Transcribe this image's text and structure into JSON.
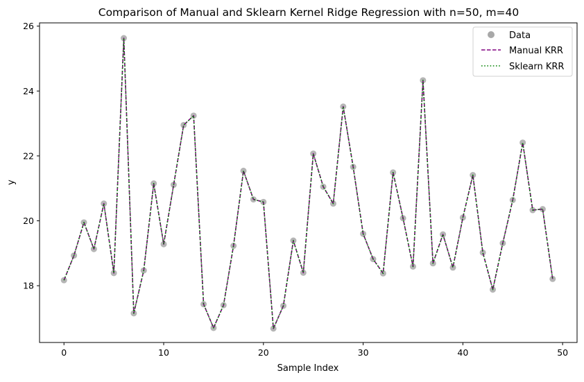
{
  "chart_data": {
    "type": "scatter+line",
    "title": "Comparison of Manual and Sklearn Kernel Ridge Regression with n=50, m=40",
    "xlabel": "Sample Index",
    "ylabel": "y",
    "xlim": [
      -2.45,
      51.45
    ],
    "ylim": [
      16.25,
      26.1
    ],
    "x_ticks": [
      0,
      10,
      20,
      30,
      40,
      50
    ],
    "y_ticks": [
      18,
      20,
      22,
      24,
      26
    ],
    "grid": false,
    "legend": {
      "placement": "top-right",
      "entries": [
        {
          "label": "Data",
          "marker": "circle",
          "color": "#a8a8a8"
        },
        {
          "label": "Manual KRR",
          "style": "dashed",
          "color": "#800080"
        },
        {
          "label": "Sklearn KRR",
          "style": "dotted",
          "color": "#008000"
        }
      ]
    },
    "x": [
      0,
      1,
      2,
      3,
      4,
      5,
      6,
      7,
      8,
      9,
      10,
      11,
      12,
      13,
      14,
      15,
      16,
      17,
      18,
      19,
      20,
      21,
      22,
      23,
      24,
      25,
      26,
      27,
      28,
      29,
      30,
      31,
      32,
      33,
      34,
      35,
      36,
      37,
      38,
      39,
      40,
      41,
      42,
      43,
      44,
      45,
      46,
      47,
      48,
      49
    ],
    "series": [
      {
        "name": "Data",
        "kind": "scatter",
        "color": "#a8a8a8",
        "values": [
          18.17,
          18.93,
          19.95,
          19.13,
          20.53,
          18.39,
          25.63,
          17.15,
          18.47,
          21.15,
          19.28,
          21.11,
          22.95,
          23.24,
          17.43,
          16.7,
          17.4,
          19.23,
          21.54,
          20.66,
          20.58,
          16.68,
          17.38,
          19.39,
          18.4,
          22.07,
          21.05,
          20.53,
          23.52,
          21.66,
          19.6,
          18.82,
          18.38,
          21.49,
          20.08,
          18.59,
          24.33,
          18.69,
          19.58,
          18.56,
          20.1,
          21.41,
          19.02,
          17.88,
          19.31,
          20.64,
          22.41,
          20.33,
          20.36,
          18.21
        ]
      },
      {
        "name": "Manual KRR",
        "kind": "line",
        "style": "dashed",
        "color": "#800080",
        "values": [
          18.17,
          18.93,
          19.95,
          19.13,
          20.53,
          18.39,
          25.63,
          17.15,
          18.47,
          21.15,
          19.28,
          21.11,
          22.95,
          23.24,
          17.43,
          16.7,
          17.4,
          19.23,
          21.54,
          20.66,
          20.58,
          16.68,
          17.38,
          19.39,
          18.4,
          22.07,
          21.05,
          20.53,
          23.52,
          21.66,
          19.6,
          18.82,
          18.38,
          21.49,
          20.08,
          18.59,
          24.33,
          18.69,
          19.58,
          18.56,
          20.1,
          21.41,
          19.02,
          17.88,
          19.31,
          20.64,
          22.41,
          20.33,
          20.36,
          18.21
        ]
      },
      {
        "name": "Sklearn KRR",
        "kind": "line",
        "style": "dotted",
        "color": "#008000",
        "values": [
          18.17,
          18.93,
          19.95,
          19.13,
          20.53,
          18.39,
          25.63,
          17.15,
          18.47,
          21.15,
          19.28,
          21.11,
          22.95,
          23.24,
          17.43,
          16.7,
          17.4,
          19.23,
          21.54,
          20.66,
          20.58,
          16.68,
          17.38,
          19.39,
          18.4,
          22.07,
          21.05,
          20.53,
          23.52,
          21.66,
          19.6,
          18.82,
          18.38,
          21.49,
          20.08,
          18.59,
          24.33,
          18.69,
          19.58,
          18.56,
          20.1,
          21.41,
          19.02,
          17.88,
          19.31,
          20.64,
          22.41,
          20.33,
          20.36,
          18.21
        ]
      }
    ]
  }
}
